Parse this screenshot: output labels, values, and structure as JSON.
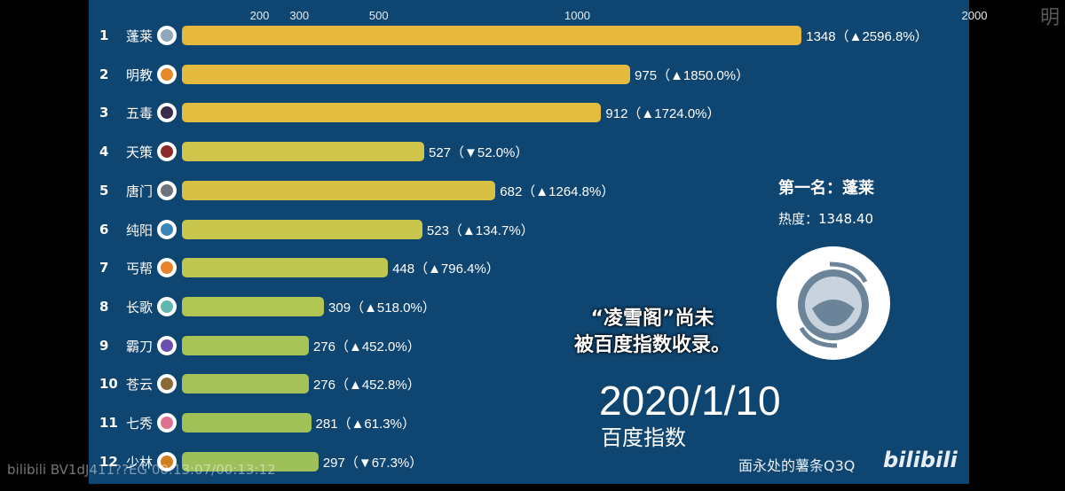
{
  "chart_data": {
    "type": "bar",
    "orientation": "horizontal",
    "x_ticks": [
      200,
      300,
      500,
      1000,
      2000
    ],
    "categories": [
      "蓬莱",
      "明教",
      "五毒",
      "天策",
      "唐门",
      "纯阳",
      "丐帮",
      "长歌",
      "霸刀",
      "苍云",
      "七秀",
      "少林"
    ],
    "ranks": [
      "1",
      "2",
      "3",
      "4",
      "5",
      "6",
      "7",
      "8",
      "9",
      "10",
      "11",
      "12"
    ],
    "values": [
      1348,
      975,
      912,
      527,
      682,
      523,
      448,
      309,
      276,
      276,
      281,
      297
    ],
    "value_labels": [
      "1348（▲2596.8%）",
      "975（▲1850.0%）",
      "912（▲1724.0%）",
      "527（▼52.0%）",
      "682（▲1264.8%）",
      "523（▲134.7%）",
      "448（▲796.4%）",
      "309（▲518.0%）",
      "276（▲452.0%）",
      "276（▲452.8%）",
      "281（▲61.3%）",
      "297（▼67.3%）"
    ],
    "icon_colors": [
      "#8fa7bd",
      "#e88a2a",
      "#3b2a4a",
      "#8a2a2a",
      "#6d7480",
      "#3a86b8",
      "#e8852a",
      "#5fb7b0",
      "#6a4fb0",
      "#8a6a3a",
      "#e07090",
      "#d08020"
    ],
    "bar_colors": [
      "#e6b93c",
      "#e4bb3e",
      "#e2bd40",
      "#cfc54a",
      "#d8c044",
      "#c8c64c",
      "#bfc750",
      "#b1c553",
      "#a8c356",
      "#a4c257",
      "#a0c158",
      "#9dc05a"
    ],
    "grid": false
  },
  "leader": {
    "label": "第一名：蓬莱",
    "heat": "热度：1348.40"
  },
  "note": {
    "line1": "“凌雪阁”尚未",
    "line2": "被百度指数收录。"
  },
  "date": "2020/1/10",
  "subtitle": "百度指数",
  "credit": "面永处的薯条Q3Q",
  "bili_logo": "bilibili",
  "watermark": "bilibili BV1dJ411??EG 00:13:07/00:13:12",
  "corner_text": "明",
  "background": "#0f4571"
}
